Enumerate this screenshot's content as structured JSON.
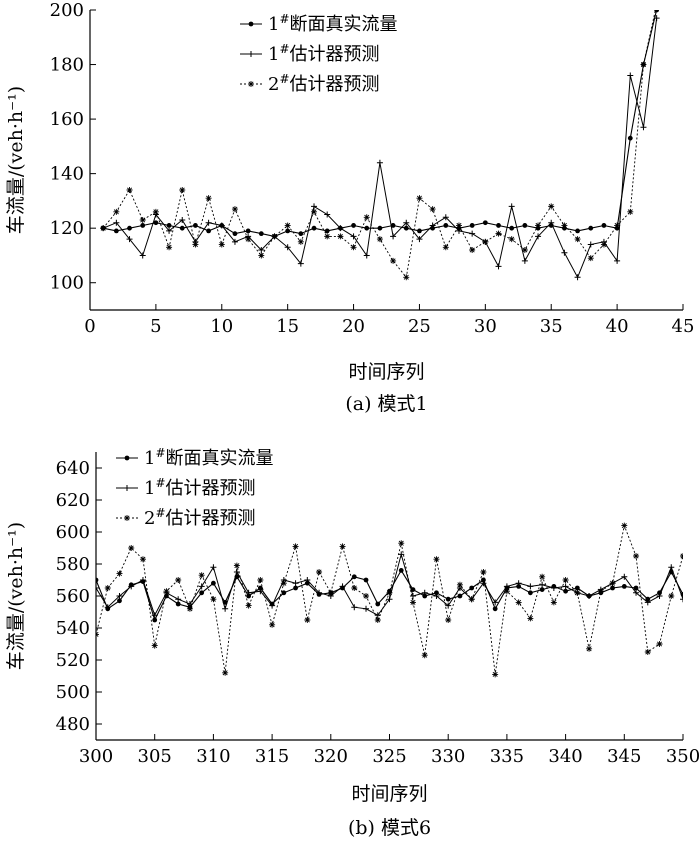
{
  "chart_data": [
    {
      "type": "line",
      "title": "",
      "caption": "(a) 模式1",
      "xlabel": "时间序列",
      "ylabel": "车流量/(veh·h⁻¹)",
      "xlim": [
        0,
        45
      ],
      "ylim": [
        90,
        200
      ],
      "xticks": [
        0,
        5,
        10,
        15,
        20,
        25,
        30,
        35,
        40,
        45
      ],
      "yticks": [
        100,
        120,
        140,
        160,
        180,
        200
      ],
      "legend_position": "top-center",
      "grid": false,
      "x": [
        1,
        2,
        3,
        4,
        5,
        6,
        7,
        8,
        9,
        10,
        11,
        12,
        13,
        14,
        15,
        16,
        17,
        18,
        19,
        20,
        21,
        22,
        23,
        24,
        25,
        26,
        27,
        28,
        29,
        30,
        31,
        32,
        33,
        34,
        35,
        36,
        37,
        38,
        39,
        40,
        41,
        42,
        43
      ],
      "series": [
        {
          "name": "1#断面真实流量",
          "marker": "dot",
          "values": [
            120,
            119,
            120,
            121,
            122,
            121,
            120,
            121,
            119,
            121,
            118,
            119,
            118,
            117,
            119,
            118,
            120,
            119,
            120,
            121,
            120,
            120,
            121,
            120,
            119,
            120,
            121,
            120,
            121,
            122,
            121,
            120,
            121,
            120,
            121,
            120,
            119,
            120,
            121,
            120,
            153,
            180,
            200
          ]
        },
        {
          "name": "1#估计器预测",
          "marker": "plus",
          "values": [
            120,
            122,
            116,
            110,
            125,
            119,
            123,
            115,
            122,
            121,
            115,
            117,
            112,
            117,
            113,
            107,
            128,
            125,
            120,
            117,
            110,
            144,
            117,
            122,
            116,
            121,
            124,
            119,
            118,
            115,
            106,
            128,
            108,
            117,
            122,
            111,
            102,
            114,
            115,
            108,
            176,
            157,
            197
          ]
        },
        {
          "name": "2#估计器预测",
          "marker": "star",
          "values": [
            120,
            126,
            134,
            123,
            126,
            113,
            134,
            114,
            131,
            114,
            127,
            116,
            110,
            117,
            121,
            115,
            126,
            117,
            117,
            113,
            124,
            116,
            108,
            102,
            131,
            127,
            113,
            121,
            112,
            115,
            118,
            116,
            112,
            121,
            128,
            121,
            116,
            109,
            114,
            121,
            126,
            180,
            202
          ]
        }
      ],
      "legend": [
        "1#断面真实流量",
        "1#估计器预测",
        "2#估计器预测"
      ]
    },
    {
      "type": "line",
      "title": "",
      "caption": "(b) 模式6",
      "xlabel": "时间序列",
      "ylabel": "车流量/(veh·h⁻¹)",
      "xlim": [
        300,
        350
      ],
      "ylim": [
        470,
        650
      ],
      "xticks": [
        300,
        305,
        310,
        315,
        320,
        325,
        330,
        335,
        340,
        345,
        350
      ],
      "yticks": [
        480,
        500,
        520,
        540,
        560,
        580,
        600,
        620,
        640
      ],
      "legend_position": "top-left",
      "grid": false,
      "x": [
        300,
        301,
        302,
        303,
        304,
        305,
        306,
        307,
        308,
        309,
        310,
        311,
        312,
        313,
        314,
        315,
        316,
        317,
        318,
        319,
        320,
        321,
        322,
        323,
        324,
        325,
        326,
        327,
        328,
        329,
        330,
        331,
        332,
        333,
        334,
        335,
        336,
        337,
        338,
        339,
        340,
        341,
        342,
        343,
        344,
        345,
        346,
        347,
        348,
        349,
        350
      ],
      "series": [
        {
          "name": "1#断面真实流量",
          "marker": "dot",
          "values": [
            570,
            552,
            557,
            567,
            569,
            545,
            560,
            555,
            553,
            562,
            568,
            556,
            572,
            560,
            565,
            555,
            562,
            565,
            568,
            561,
            562,
            565,
            572,
            570,
            555,
            563,
            576,
            564,
            560,
            562,
            558,
            560,
            565,
            570,
            552,
            565,
            566,
            562,
            564,
            566,
            563,
            565,
            560,
            562,
            565,
            566,
            565,
            558,
            562,
            575,
            561
          ]
        },
        {
          "name": "1#估计器预测",
          "marker": "plus",
          "values": [
            565,
            553,
            560,
            566,
            570,
            548,
            562,
            558,
            555,
            566,
            578,
            552,
            575,
            562,
            563,
            554,
            570,
            568,
            570,
            562,
            560,
            566,
            553,
            552,
            548,
            558,
            586,
            560,
            562,
            560,
            554,
            565,
            558,
            568,
            556,
            566,
            568,
            566,
            567,
            565,
            566,
            562,
            560,
            564,
            568,
            572,
            562,
            556,
            560,
            578,
            558
          ]
        },
        {
          "name": "2#估计器预测",
          "marker": "star",
          "values": [
            536,
            565,
            574,
            590,
            583,
            529,
            563,
            570,
            552,
            573,
            558,
            512,
            579,
            554,
            570,
            542,
            568,
            591,
            545,
            575,
            562,
            591,
            565,
            560,
            545,
            562,
            593,
            556,
            523,
            583,
            545,
            567,
            558,
            575,
            511,
            563,
            556,
            546,
            572,
            556,
            570,
            562,
            527,
            563,
            568,
            604,
            585,
            525,
            530,
            560,
            585
          ]
        }
      ],
      "legend": [
        "1#断面真实流量",
        "1#估计器预测",
        "2#估计器预测"
      ]
    }
  ]
}
